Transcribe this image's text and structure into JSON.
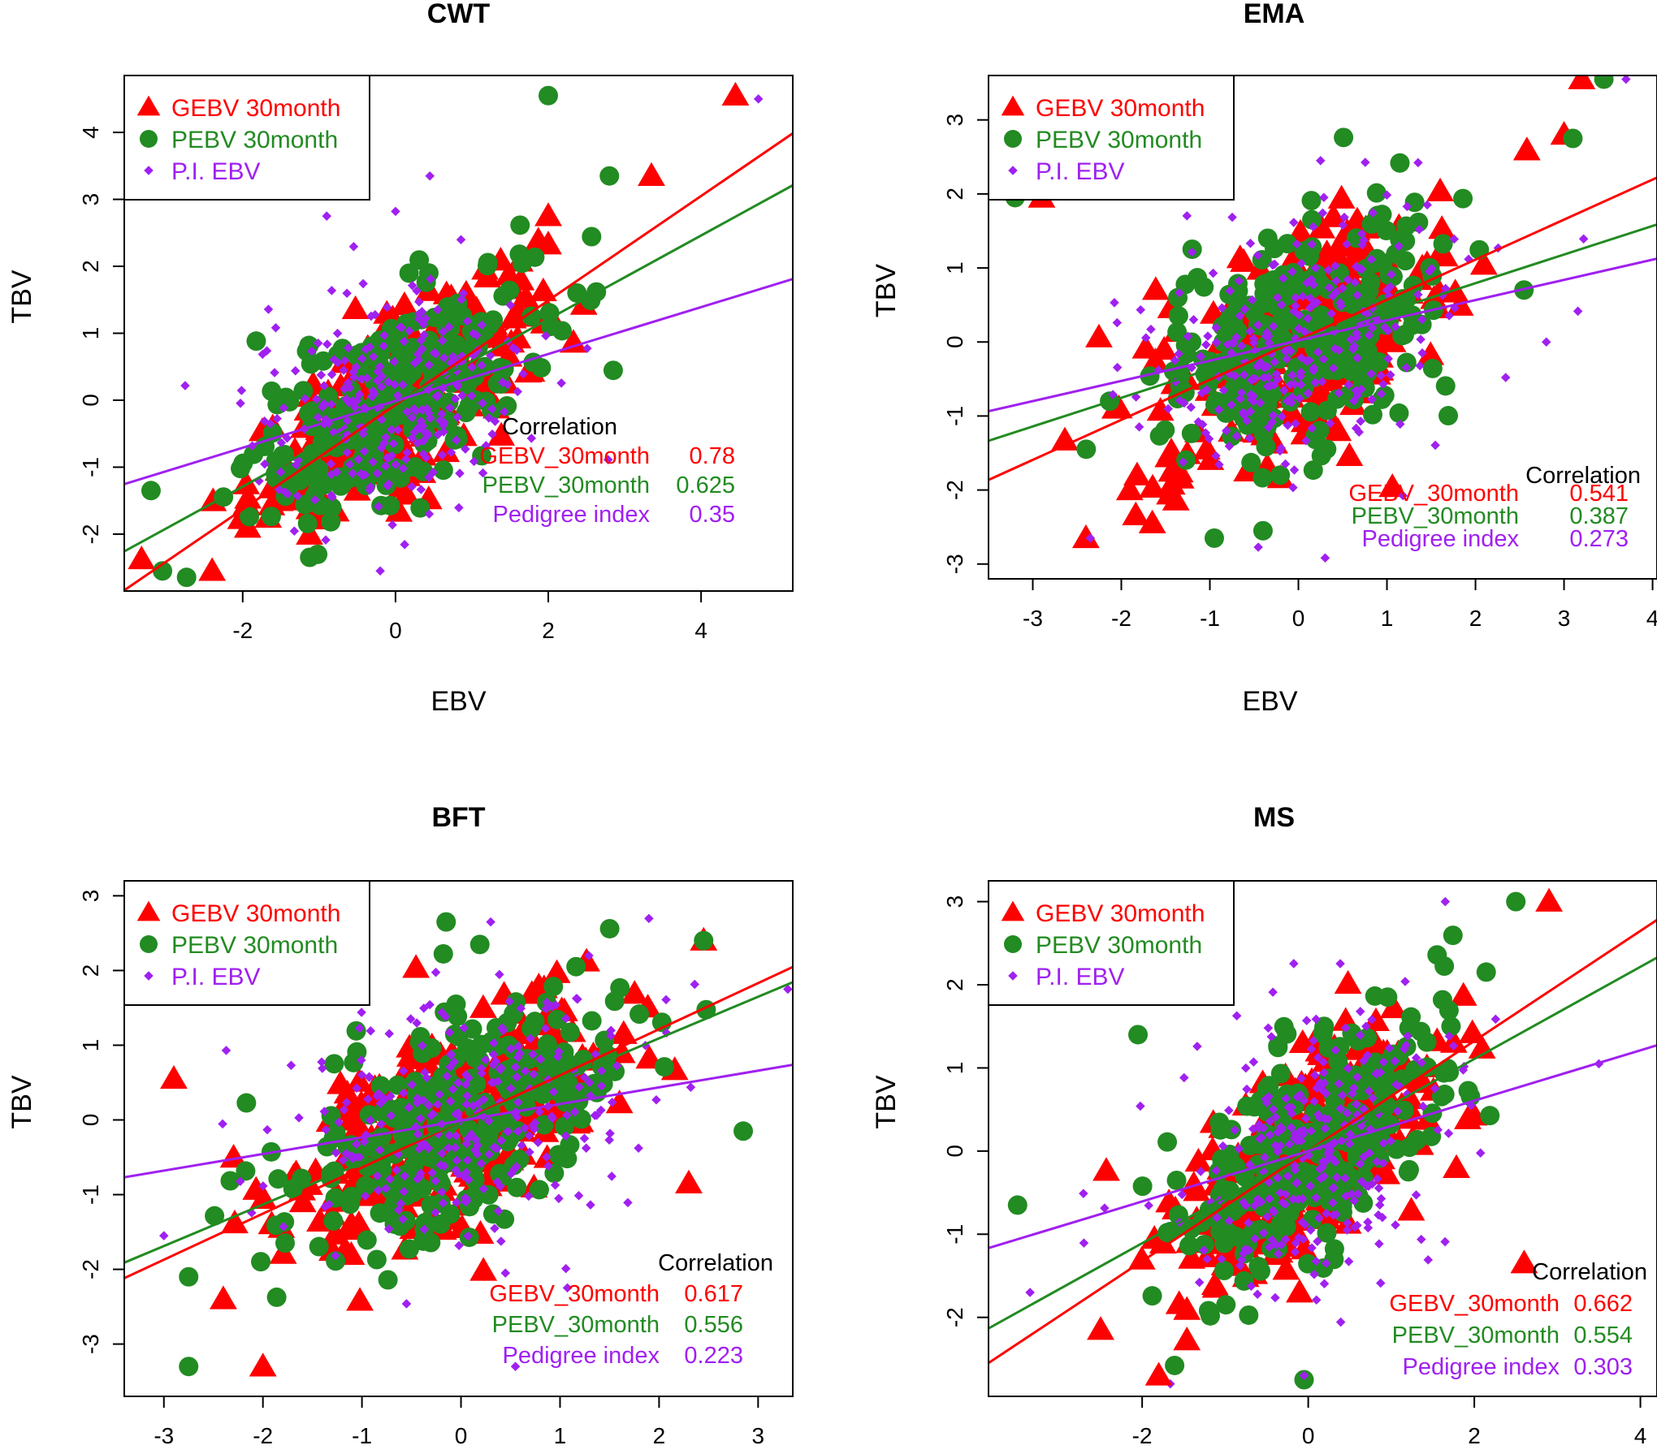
{
  "chart_data": [
    {
      "type": "scatter",
      "title": "CWT",
      "xlabel": "EBV",
      "ylabel": "TBV",
      "xlim": [
        -3.55,
        5.2
      ],
      "ylim": [
        -2.85,
        4.85
      ],
      "xticks": [
        -2,
        0,
        2,
        4
      ],
      "yticks": [
        -2,
        -1,
        0,
        1,
        2,
        3,
        4
      ],
      "grid": false,
      "legend_position": "top-left",
      "legend": [
        "GEBV 30month",
        "PEBV 30month",
        "P.I. EBV"
      ],
      "correlation": {
        "header": "Correlation",
        "rows": [
          {
            "label": "GEBV_30month",
            "value": "0.78"
          },
          {
            "label": "PEBV_30month",
            "value": "0.625"
          },
          {
            "label": "Pedigree index",
            "value": "0.35"
          }
        ]
      },
      "regression_lines": [
        {
          "series": "GEBV 30month",
          "slope": 0.78,
          "intercept": -0.07
        },
        {
          "series": "PEBV 30month",
          "slope": 0.625,
          "intercept": -0.04
        },
        {
          "series": "P.I. EBV",
          "slope": 0.35,
          "intercept": -0.01
        }
      ],
      "generated_points": 260,
      "sd": 0.95,
      "gebv_outliers": [
        [
          4.45,
          4.55
        ],
        [
          3.35,
          3.35
        ],
        [
          2.0,
          2.75
        ],
        [
          -2.4,
          -2.55
        ]
      ],
      "pebv_outliers": [
        [
          2.0,
          4.55
        ],
        [
          2.8,
          3.35
        ],
        [
          -3.2,
          -1.35
        ],
        [
          -3.05,
          -2.55
        ]
      ],
      "pi_outliers": [
        [
          4.75,
          4.5
        ],
        [
          0.45,
          3.35
        ],
        [
          -0.9,
          2.75
        ],
        [
          -0.2,
          -2.55
        ]
      ]
    },
    {
      "type": "scatter",
      "title": "EMA",
      "xlabel": "EBV",
      "ylabel": "TBV",
      "xlim": [
        -3.5,
        4.05
      ],
      "ylim": [
        -3.2,
        3.6
      ],
      "xticks": [
        -3,
        -2,
        -1,
        0,
        1,
        2,
        3,
        4
      ],
      "yticks": [
        -3,
        -2,
        -1,
        0,
        1,
        2,
        3
      ],
      "grid": false,
      "legend_position": "top-left",
      "legend": [
        "GEBV 30month",
        "PEBV 30month",
        "P.I. EBV"
      ],
      "correlation": {
        "header": "Correlation",
        "rows": [
          {
            "label": "GEBV_30month",
            "value": "0.541"
          },
          {
            "label": "PEBV_30month",
            "value": "0.387"
          },
          {
            "label": "Pedigree index",
            "value": "0.273"
          }
        ]
      },
      "regression_lines": [
        {
          "series": "GEBV 30month",
          "slope": 0.541,
          "intercept": 0.03
        },
        {
          "series": "PEBV 30month",
          "slope": 0.387,
          "intercept": 0.02
        },
        {
          "series": "P.I. EBV",
          "slope": 0.273,
          "intercept": 0.02
        }
      ],
      "generated_points": 270,
      "sd": 0.85,
      "gebv_outliers": [
        [
          3.2,
          3.55
        ],
        [
          3.0,
          2.8
        ],
        [
          -2.9,
          1.95
        ],
        [
          -2.4,
          -2.65
        ],
        [
          -1.65,
          -2.45
        ]
      ],
      "pebv_outliers": [
        [
          3.45,
          3.55
        ],
        [
          3.1,
          2.75
        ],
        [
          -3.2,
          1.95
        ],
        [
          -0.95,
          -2.65
        ],
        [
          -0.4,
          -2.55
        ]
      ],
      "pi_outliers": [
        [
          3.7,
          3.55
        ],
        [
          -2.35,
          -2.65
        ],
        [
          2.8,
          0.0
        ],
        [
          0.25,
          2.45
        ]
      ]
    },
    {
      "type": "scatter",
      "title": "BFT",
      "xlabel": "",
      "ylabel": "TBV",
      "xlim": [
        -3.4,
        3.35
      ],
      "ylim": [
        -3.7,
        3.2
      ],
      "xticks": [
        -3,
        -2,
        -1,
        0,
        1,
        2,
        3
      ],
      "yticks": [
        -3,
        -2,
        -1,
        0,
        1,
        2,
        3
      ],
      "grid": false,
      "legend_position": "top-left",
      "legend": [
        "GEBV 30month",
        "PEBV 30month",
        "P.I. EBV"
      ],
      "correlation": {
        "header": "Correlation",
        "rows": [
          {
            "label": "GEBV_30month",
            "value": "0.617"
          },
          {
            "label": "PEBV_30month",
            "value": "0.556"
          },
          {
            "label": "Pedigree index",
            "value": "0.223"
          }
        ]
      },
      "regression_lines": [
        {
          "series": "GEBV 30month",
          "slope": 0.617,
          "intercept": -0.02
        },
        {
          "series": "PEBV 30month",
          "slope": 0.556,
          "intercept": -0.02
        },
        {
          "series": "P.I. EBV",
          "slope": 0.223,
          "intercept": -0.01
        }
      ],
      "generated_points": 280,
      "sd": 0.85,
      "gebv_outliers": [
        [
          -2.9,
          0.55
        ],
        [
          2.45,
          2.4
        ],
        [
          -2.0,
          -3.3
        ],
        [
          2.3,
          -0.85
        ],
        [
          -2.4,
          -2.4
        ]
      ],
      "pebv_outliers": [
        [
          -2.75,
          -3.3
        ],
        [
          -0.15,
          2.65
        ],
        [
          2.85,
          -0.15
        ],
        [
          -2.75,
          -2.1
        ],
        [
          2.45,
          2.4
        ]
      ],
      "pi_outliers": [
        [
          -3.0,
          -1.55
        ],
        [
          0.3,
          2.65
        ],
        [
          0.55,
          -3.3
        ],
        [
          3.3,
          1.75
        ]
      ]
    },
    {
      "type": "scatter",
      "title": "MS",
      "xlabel": "",
      "ylabel": "TBV",
      "xlim": [
        -3.85,
        4.2
      ],
      "ylim": [
        -2.95,
        3.25
      ],
      "xticks": [
        -2,
        0,
        2,
        4
      ],
      "yticks": [
        -2,
        -1,
        0,
        1,
        2,
        3
      ],
      "grid": false,
      "legend_position": "top-left",
      "legend": [
        "GEBV 30month",
        "PEBV 30month",
        "P.I. EBV"
      ],
      "correlation": {
        "header": "Correlation",
        "rows": [
          {
            "label": "GEBV_30month",
            "value": "0.662"
          },
          {
            "label": "PEBV_30month",
            "value": "0.554"
          },
          {
            "label": "Pedigree index",
            "value": "0.303"
          }
        ]
      },
      "regression_lines": [
        {
          "series": "GEBV 30month",
          "slope": 0.662,
          "intercept": 0.0
        },
        {
          "series": "PEBV 30month",
          "slope": 0.554,
          "intercept": 0.0
        },
        {
          "series": "P.I. EBV",
          "slope": 0.303,
          "intercept": 0.0
        }
      ],
      "generated_points": 270,
      "sd": 0.85,
      "gebv_outliers": [
        [
          2.9,
          3.0
        ],
        [
          2.6,
          -1.35
        ],
        [
          -1.8,
          -2.7
        ],
        [
          -2.5,
          -2.15
        ]
      ],
      "pebv_outliers": [
        [
          2.5,
          3.0
        ],
        [
          -3.5,
          -0.65
        ],
        [
          -2.05,
          1.4
        ],
        [
          -0.05,
          -2.75
        ]
      ],
      "pi_outliers": [
        [
          1.65,
          3.0
        ],
        [
          3.5,
          1.05
        ],
        [
          -0.05,
          -2.7
        ],
        [
          -3.35,
          -1.7
        ]
      ]
    }
  ],
  "series_styles": [
    {
      "name": "GEBV 30month",
      "color": "#ff0000",
      "marker": "triangle"
    },
    {
      "name": "PEBV 30month",
      "color": "#228b22",
      "marker": "circle"
    },
    {
      "name": "P.I. EBV",
      "color": "#a020f0",
      "marker": "diamond"
    }
  ]
}
